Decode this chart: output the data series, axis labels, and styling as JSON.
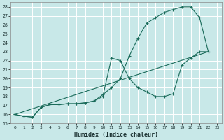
{
  "xlabel": "Humidex (Indice chaleur)",
  "ylabel": "",
  "background_color": "#c8e8e8",
  "grid_color": "#ffffff",
  "line_color": "#1a6b5a",
  "xlim": [
    -0.5,
    23.5
  ],
  "ylim": [
    15,
    28.5
  ],
  "xticks": [
    0,
    1,
    2,
    3,
    4,
    5,
    6,
    7,
    8,
    9,
    10,
    11,
    12,
    13,
    14,
    15,
    16,
    17,
    18,
    19,
    20,
    21,
    22,
    23
  ],
  "yticks": [
    15,
    16,
    17,
    18,
    19,
    20,
    21,
    22,
    23,
    24,
    25,
    26,
    27,
    28
  ],
  "curve1_x": [
    0,
    1,
    2,
    3,
    4,
    5,
    6,
    7,
    8,
    9,
    10,
    11,
    12,
    13,
    14,
    15,
    16,
    17,
    18,
    19,
    20,
    21,
    22
  ],
  "curve1_y": [
    16.0,
    15.8,
    15.7,
    16.8,
    17.1,
    17.1,
    17.2,
    17.2,
    17.3,
    17.5,
    18.2,
    19.0,
    20.0,
    22.5,
    24.5,
    26.2,
    26.8,
    27.4,
    27.7,
    28.0,
    28.0,
    26.8,
    23.0
  ],
  "curve2_x": [
    0,
    1,
    2,
    3,
    4,
    5,
    6,
    7,
    8,
    9,
    10,
    11,
    12,
    13,
    14,
    15,
    16,
    17,
    18,
    19,
    20,
    21,
    22
  ],
  "curve2_y": [
    16.0,
    15.8,
    15.7,
    16.8,
    17.1,
    17.1,
    17.2,
    17.2,
    17.3,
    17.5,
    18.0,
    22.3,
    22.0,
    20.0,
    19.0,
    18.5,
    18.0,
    18.0,
    18.3,
    21.5,
    22.3,
    23.0,
    23.0
  ],
  "curve3_x": [
    0,
    22
  ],
  "curve3_y": [
    16.0,
    23.0
  ]
}
